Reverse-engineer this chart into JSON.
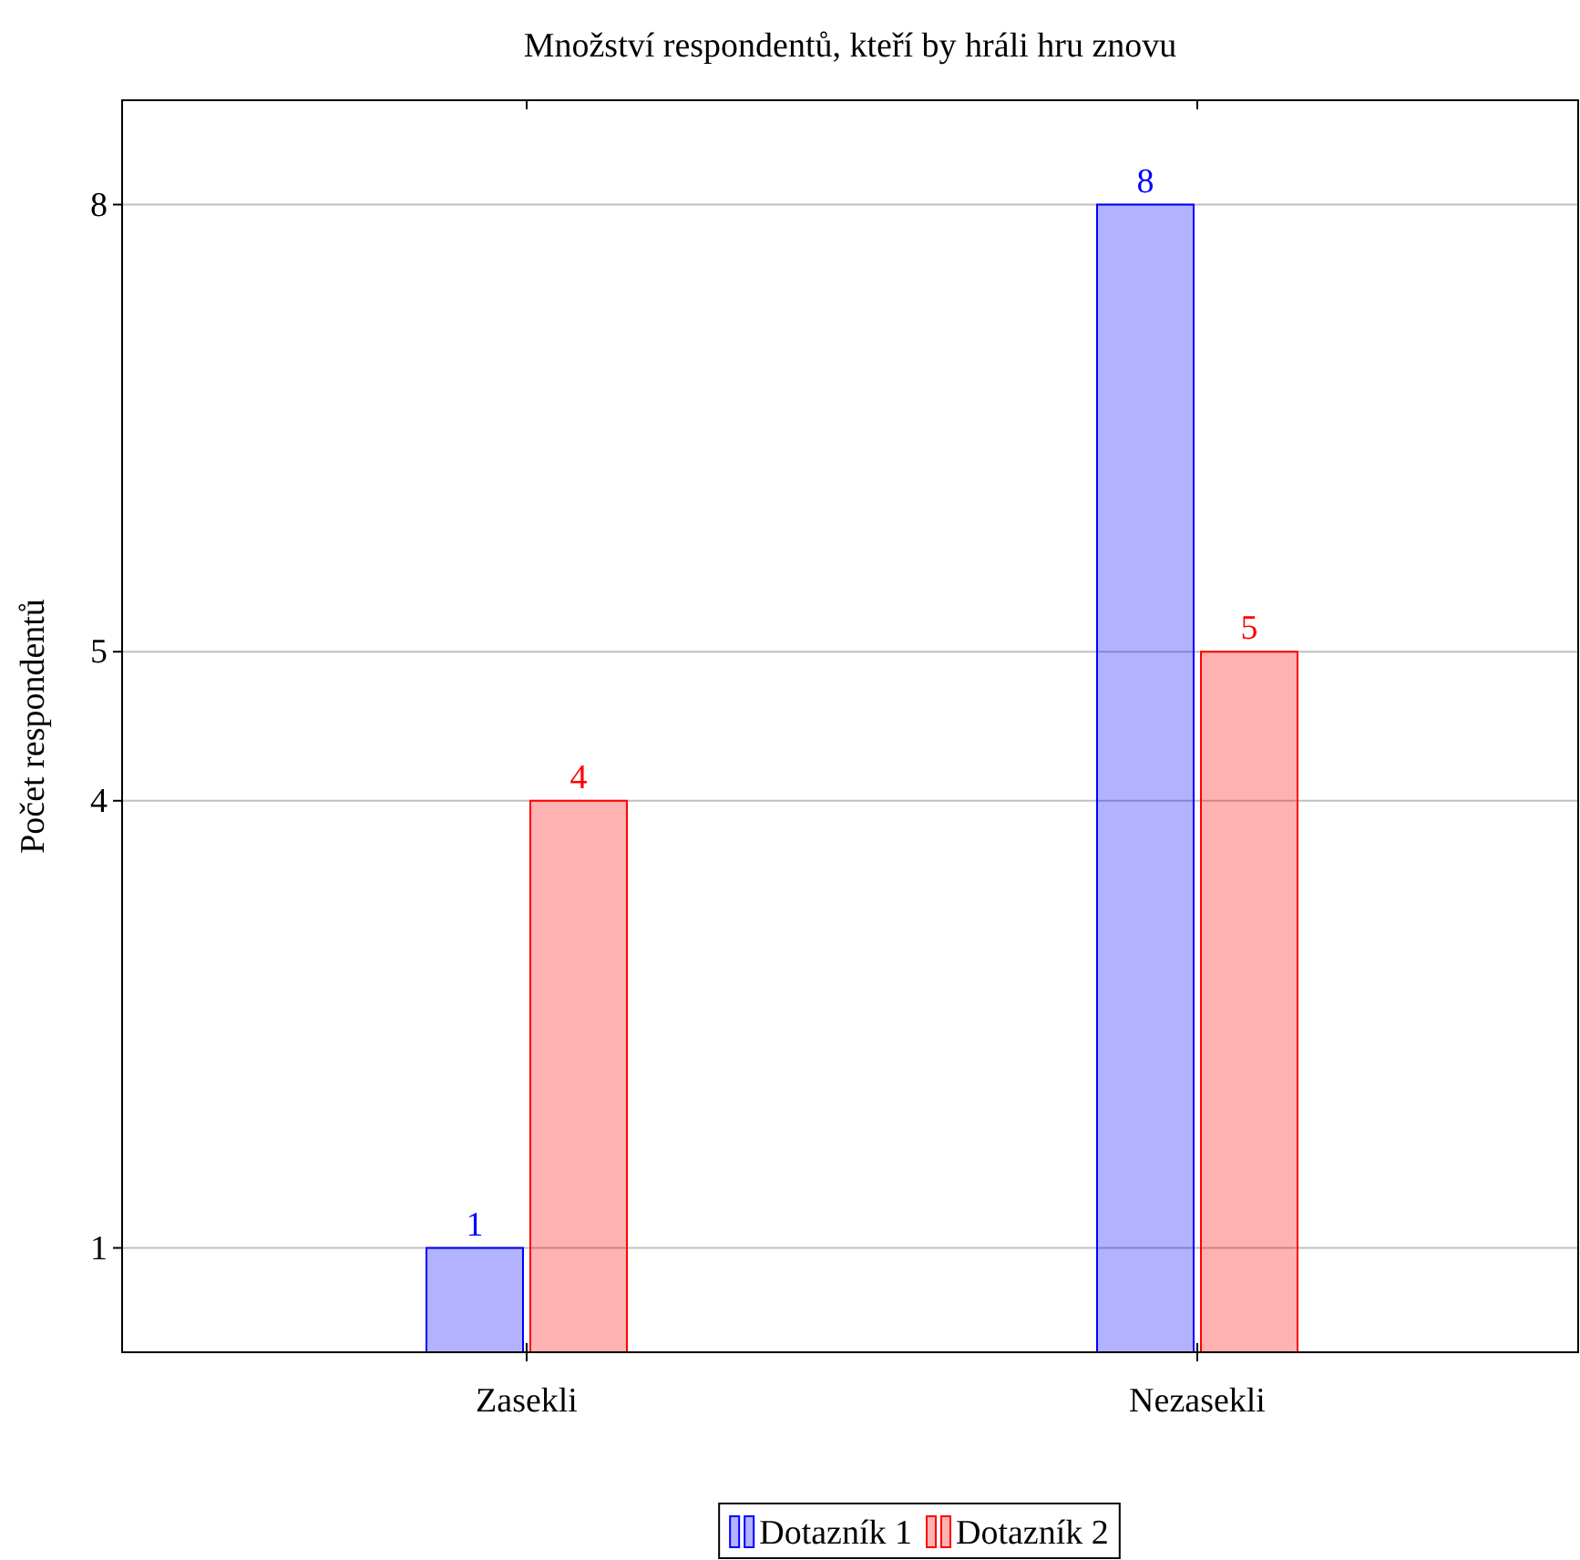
{
  "chart_data": {
    "type": "bar",
    "title": "Množství respondentů, kteří by hráli hru znovu",
    "ylabel": "Počet respondentů",
    "categories": [
      "Zasekli",
      "Nezasekli"
    ],
    "series": [
      {
        "name": "Dotazník 1",
        "color": "#0000ff",
        "values": [
          1,
          8
        ]
      },
      {
        "name": "Dotazník 2",
        "color": "#ff0000",
        "values": [
          4,
          5
        ]
      }
    ],
    "ylim": [
      0.3,
      8.7
    ],
    "yticks": [
      1,
      4,
      5,
      8
    ],
    "grid": "y",
    "data_labels": true,
    "legend": "bottom"
  }
}
